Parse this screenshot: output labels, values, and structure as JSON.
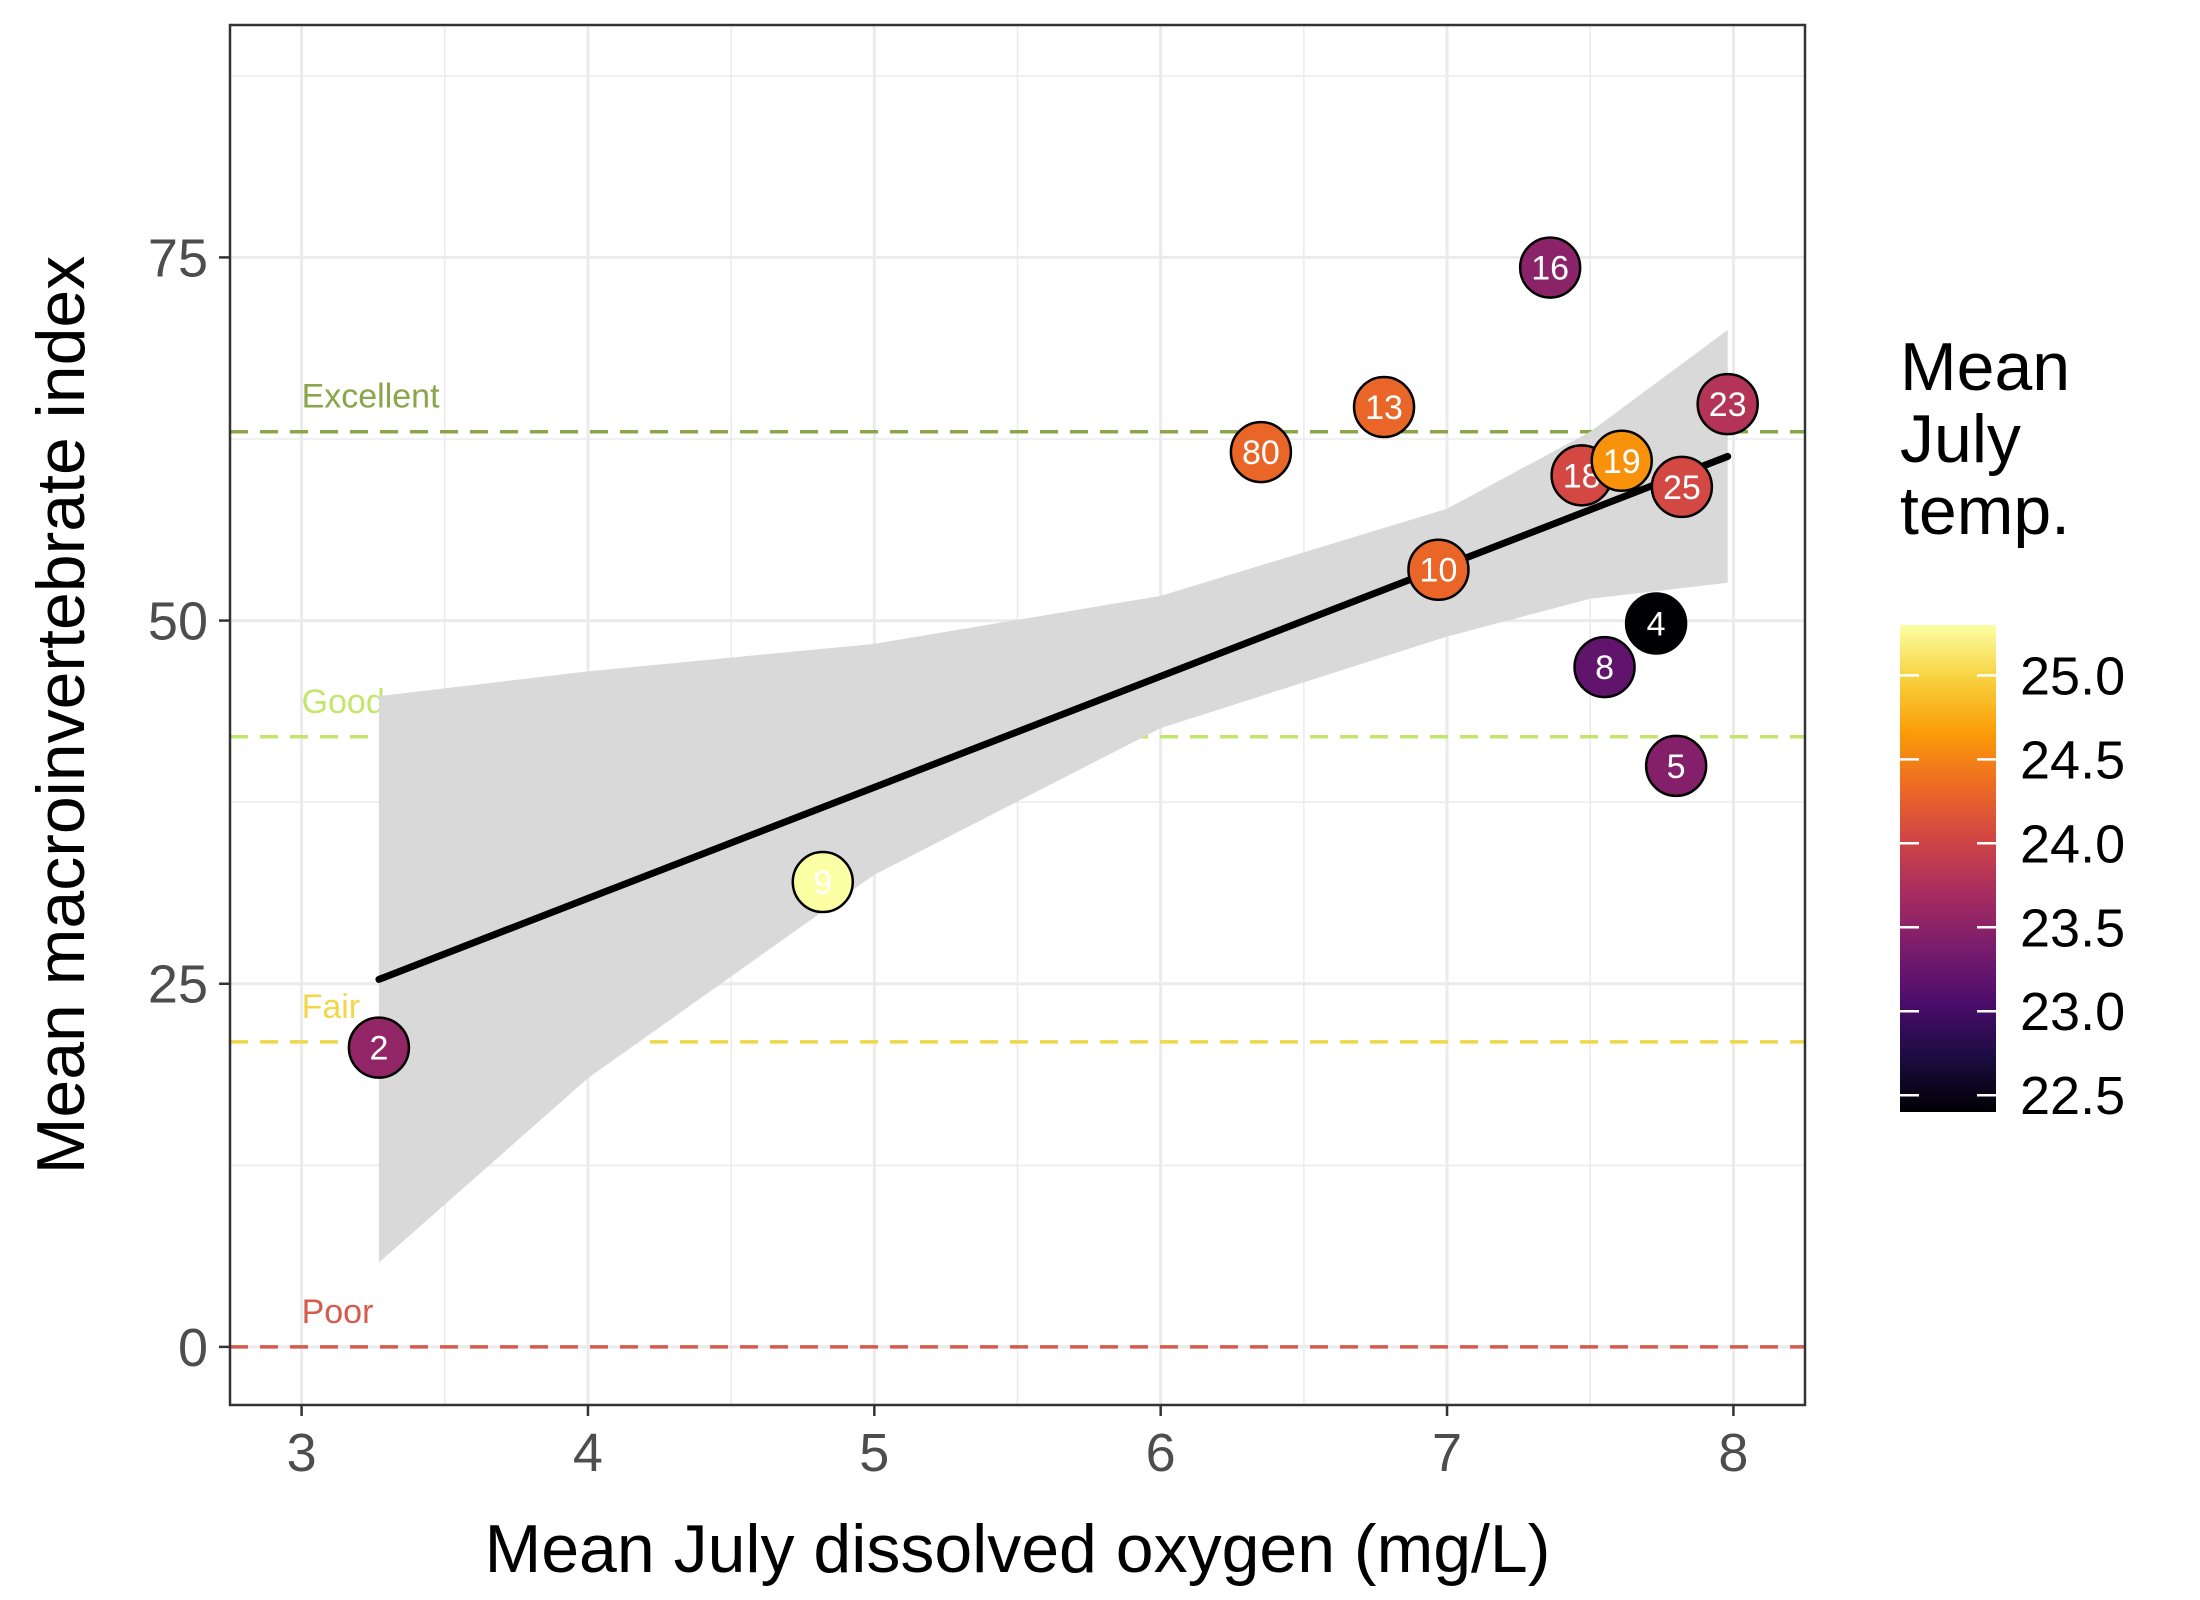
{
  "chart_data": {
    "type": "scatter",
    "xlabel": "Mean July dissolved oxygen (mg/L)",
    "ylabel": "Mean macroinvertebrate index",
    "xlim": [
      2.75,
      8.25
    ],
    "ylim": [
      -4,
      91
    ],
    "x_ticks": [
      3,
      4,
      5,
      6,
      7,
      8
    ],
    "y_ticks": [
      0,
      25,
      50,
      75
    ],
    "grid": true,
    "legend": {
      "title": [
        "Mean",
        "July",
        "temp."
      ],
      "type": "colorbar",
      "placement": "right",
      "range": [
        22.4,
        25.3
      ],
      "ticks": [
        22.5,
        23.0,
        23.5,
        24.0,
        24.5,
        25.0
      ],
      "tick_labels": [
        "22.5",
        "23.0",
        "23.5",
        "24.0",
        "24.5",
        "25.0"
      ],
      "palette": [
        "#000004",
        "#1b0c41",
        "#4a0c6b",
        "#781c6d",
        "#a52c60",
        "#cf4446",
        "#ed6925",
        "#fb9b06",
        "#f7d13d",
        "#fcffa4"
      ]
    },
    "reference_lines": [
      {
        "label": "Excellent",
        "y": 63,
        "color": "#8aa54a"
      },
      {
        "label": "Good",
        "y": 42,
        "color": "#c4e56b"
      },
      {
        "label": "Fair",
        "y": 21,
        "color": "#f1d84a"
      },
      {
        "label": "Poor",
        "y": 0,
        "color": "#d55b4d"
      }
    ],
    "trend": {
      "x": [
        3.27,
        7.98
      ],
      "y": [
        25.3,
        61.3
      ],
      "color": "#000000",
      "ci_color": "#d9d9d9",
      "ci": {
        "x": [
          3.27,
          4.0,
          5.0,
          6.0,
          7.0,
          7.5,
          7.98
        ],
        "lower": [
          5.8,
          18.5,
          32.5,
          42.6,
          48.9,
          51.5,
          52.6
        ],
        "upper": [
          44.8,
          46.5,
          48.4,
          51.7,
          57.7,
          63.0,
          70.0
        ]
      }
    },
    "points": [
      {
        "label": "2",
        "x": 3.27,
        "y": 20.6,
        "temp": 23.55
      },
      {
        "label": "9",
        "x": 4.82,
        "y": 32.0,
        "temp": 25.3
      },
      {
        "label": "80",
        "x": 6.35,
        "y": 61.6,
        "temp": 24.3
      },
      {
        "label": "13",
        "x": 6.78,
        "y": 64.7,
        "temp": 24.3
      },
      {
        "label": "10",
        "x": 6.97,
        "y": 53.5,
        "temp": 24.3
      },
      {
        "label": "16",
        "x": 7.36,
        "y": 74.3,
        "temp": 23.5
      },
      {
        "label": "18",
        "x": 7.47,
        "y": 60.0,
        "temp": 24.05
      },
      {
        "label": "19",
        "x": 7.61,
        "y": 61.0,
        "temp": 24.6
      },
      {
        "label": "8",
        "x": 7.55,
        "y": 46.8,
        "temp": 23.2
      },
      {
        "label": "4",
        "x": 7.73,
        "y": 49.8,
        "temp": 22.4
      },
      {
        "label": "5",
        "x": 7.8,
        "y": 40.0,
        "temp": 23.45
      },
      {
        "label": "25",
        "x": 7.82,
        "y": 59.2,
        "temp": 24.05
      },
      {
        "label": "23",
        "x": 7.98,
        "y": 64.9,
        "temp": 23.8
      }
    ]
  }
}
